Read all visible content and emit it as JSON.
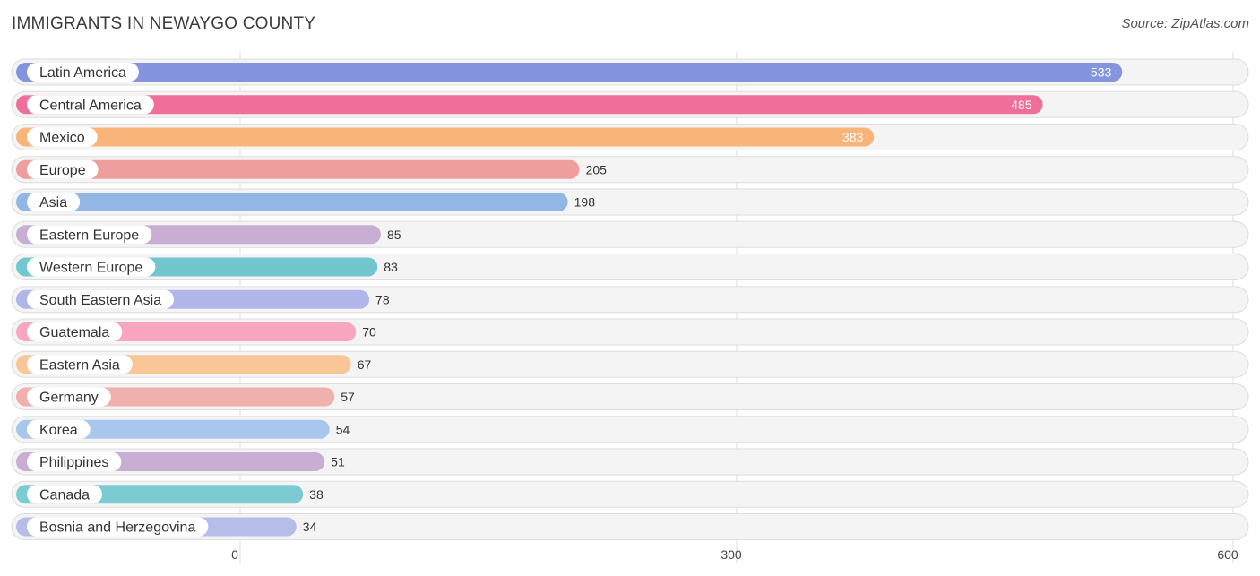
{
  "header": {
    "title": "IMMIGRANTS IN NEWAYGO COUNTY",
    "source": "Source: ZipAtlas.com"
  },
  "chart_data": {
    "type": "bar",
    "orientation": "horizontal",
    "title": "IMMIGRANTS IN NEWAYGO COUNTY",
    "categories": [
      "Latin America",
      "Central America",
      "Mexico",
      "Europe",
      "Asia",
      "Eastern Europe",
      "Western Europe",
      "South Eastern Asia",
      "Guatemala",
      "Eastern Asia",
      "Germany",
      "Korea",
      "Philippines",
      "Canada",
      "Bosnia and Herzegovina"
    ],
    "values": [
      533,
      485,
      383,
      205,
      198,
      85,
      83,
      78,
      70,
      67,
      57,
      54,
      51,
      38,
      34
    ],
    "value_labels": [
      "533",
      "485",
      "383",
      "205",
      "198",
      "85",
      "83",
      "78",
      "70",
      "67",
      "57",
      "54",
      "51",
      "38",
      "34"
    ],
    "colors": [
      "#8594de",
      "#f06f9a",
      "#f9b47a",
      "#ee9e9c",
      "#92b7e5",
      "#c8aed3",
      "#72c6cd",
      "#b1b6ea",
      "#f8a5bf",
      "#f9c698",
      "#f0b0ad",
      "#a9c7ec",
      "#c8aed3",
      "#7ccbd2",
      "#b7bde9"
    ],
    "x_ticks": [
      0,
      300,
      600
    ],
    "x_tick_labels": [
      "0",
      "300",
      "600"
    ],
    "xlim": [
      0,
      600
    ],
    "grid": true
  }
}
